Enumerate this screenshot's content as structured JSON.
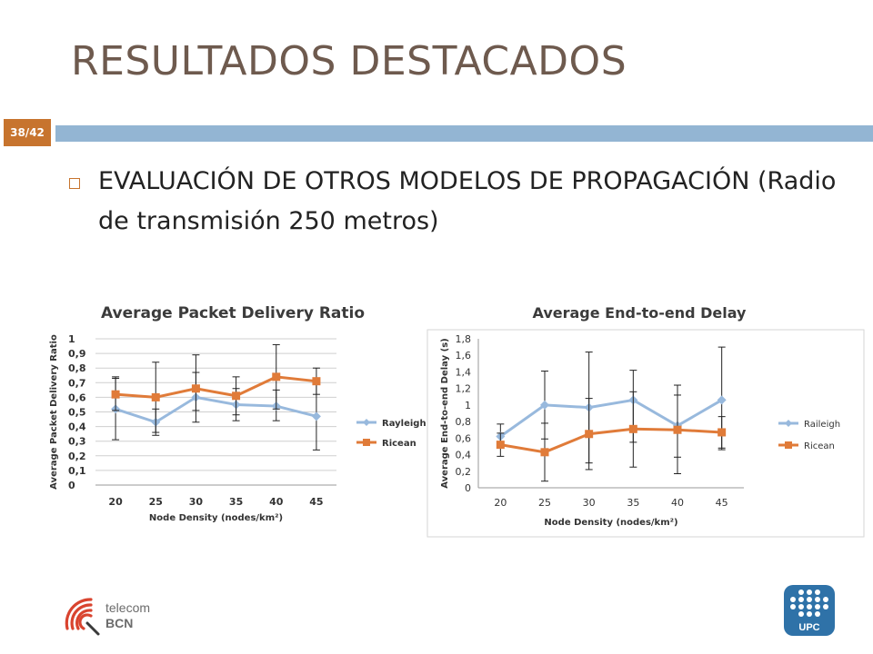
{
  "slide": {
    "title": "RESULTADOS DESTACADOS",
    "page": "38/42",
    "bullet_main": "EVALUACIÓN DE OTROS MODELOS DE PROPAGACIÓN",
    "bullet_sub": " (Radio de transmisión 250 metros)",
    "logo_left_line1": "telecom",
    "logo_left_line2": "BCN",
    "logo_right": "UPC"
  },
  "colors": {
    "title": "#6e5a4e",
    "band": "#93b5d3",
    "accent": "#c7742e",
    "series_blue": "#98b9dd",
    "series_orange": "#e07b39"
  },
  "chart_data": [
    {
      "type": "line",
      "title": "Average Packet Delivery Ratio",
      "xlabel": "Node Density (nodes/km²)",
      "ylabel": "Average Packet Delivery Ratio",
      "x": [
        20,
        25,
        30,
        35,
        40,
        45
      ],
      "ylim": [
        0,
        1
      ],
      "yticks": [
        "0",
        "0,1",
        "0,2",
        "0,3",
        "0,4",
        "0,5",
        "0,6",
        "0,7",
        "0,8",
        "0,9",
        "1"
      ],
      "grid": true,
      "legend": "right",
      "series": [
        {
          "name": "Rayleigh",
          "values": [
            0.52,
            0.43,
            0.6,
            0.55,
            0.54,
            0.47
          ],
          "err_low": [
            0.31,
            0.34,
            0.43,
            0.44,
            0.44,
            0.24
          ],
          "err_high": [
            0.73,
            0.52,
            0.77,
            0.66,
            0.65,
            0.7
          ]
        },
        {
          "name": "Ricean",
          "values": [
            0.62,
            0.6,
            0.66,
            0.61,
            0.74,
            0.71
          ],
          "err_low": [
            0.51,
            0.36,
            0.51,
            0.48,
            0.52,
            0.62
          ],
          "err_high": [
            0.74,
            0.84,
            0.89,
            0.74,
            0.96,
            0.8
          ]
        }
      ]
    },
    {
      "type": "line",
      "title": "Average End-to-end Delay",
      "xlabel": "Node Density (nodes/km²)",
      "ylabel": "Average End-to-end Delay (s)",
      "x": [
        20,
        25,
        30,
        35,
        40,
        45
      ],
      "ylim": [
        0,
        1.8
      ],
      "yticks": [
        "0",
        "0,2",
        "0,4",
        "0,6",
        "0,8",
        "1",
        "1,2",
        "1,4",
        "1,6",
        "1,8"
      ],
      "grid": false,
      "legend": "right",
      "series": [
        {
          "name": "Raileigh",
          "values": [
            0.62,
            1.0,
            0.97,
            1.06,
            0.75,
            1.06
          ],
          "err_low": [
            0.52,
            0.59,
            0.3,
            0.25,
            0.37,
            0.46
          ],
          "err_high": [
            0.77,
            1.41,
            1.64,
            1.42,
            1.24,
            1.7
          ]
        },
        {
          "name": "Ricean",
          "values": [
            0.52,
            0.43,
            0.65,
            0.71,
            0.7,
            0.67
          ],
          "err_low": [
            0.38,
            0.08,
            0.22,
            0.55,
            0.17,
            0.48
          ],
          "err_high": [
            0.66,
            0.78,
            1.08,
            1.16,
            1.12,
            0.86
          ]
        }
      ]
    }
  ]
}
